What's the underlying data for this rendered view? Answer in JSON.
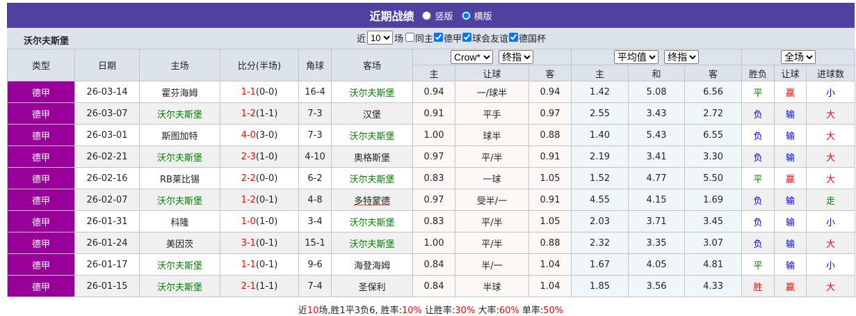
{
  "header": {
    "title": "近期战绩",
    "view_options": [
      "竖版",
      "横版"
    ],
    "selected_view": "横版"
  },
  "filter": {
    "team": "沃尔夫斯堡",
    "recent_prefix": "近",
    "recent_count": "10",
    "recent_suffix": "场",
    "checkboxes": [
      {
        "label": "同主",
        "checked": false
      },
      {
        "label": "德甲",
        "checked": true
      },
      {
        "label": "球会友谊",
        "checked": true
      },
      {
        "label": "德国杯",
        "checked": true
      }
    ]
  },
  "columns": {
    "type": "类型",
    "date": "日期",
    "home": "主场",
    "score": "比分(半场)",
    "corner": "角球",
    "away": "客场",
    "asian_company": "Crow*",
    "asian_mode": "终指",
    "avg_company": "平均值",
    "avg_mode": "终指",
    "scope": "全场",
    "sub": [
      "主",
      "让球",
      "客",
      "主",
      "和",
      "客",
      "胜负",
      "让球",
      "进球数"
    ]
  },
  "colors": {
    "title_bg": "#5040a0",
    "type_bg": "#990099",
    "team_highlight": "#008000",
    "score": "#ff0000",
    "win": "#ff0000",
    "lose": "#0000ff",
    "draw": "#008000"
  },
  "matches": [
    {
      "type": "德甲",
      "date": "26-03-14",
      "home": "霍芬海姆",
      "score": "1-1",
      "half": "(0-0)",
      "corner": "16-4",
      "away": "沃尔夫斯堡",
      "o_home": "0.94",
      "handicap": "一/球半",
      "o_away": "0.94",
      "avg_home": "1.42",
      "avg_draw": "5.08",
      "avg_away": "6.56",
      "result": "平",
      "hc_result": "赢",
      "goals": "小",
      "highlight": "away"
    },
    {
      "type": "德甲",
      "date": "26-03-07",
      "home": "沃尔夫斯堡",
      "score": "1-2",
      "half": "(1-1)",
      "corner": "7-3",
      "away": "汉堡",
      "o_home": "0.91",
      "handicap": "平手",
      "o_away": "0.97",
      "avg_home": "2.55",
      "avg_draw": "3.43",
      "avg_away": "2.72",
      "result": "负",
      "hc_result": "输",
      "goals": "大",
      "highlight": "home"
    },
    {
      "type": "德甲",
      "date": "26-03-01",
      "home": "斯图加特",
      "score": "4-0",
      "half": "(3-0)",
      "corner": "7-3",
      "away": "沃尔夫斯堡",
      "o_home": "1.00",
      "handicap": "球半",
      "o_away": "0.88",
      "avg_home": "1.40",
      "avg_draw": "5.43",
      "avg_away": "6.55",
      "result": "负",
      "hc_result": "输",
      "goals": "大",
      "highlight": "away"
    },
    {
      "type": "德甲",
      "date": "26-02-21",
      "home": "沃尔夫斯堡",
      "score": "2-3",
      "half": "(1-0)",
      "corner": "4-10",
      "away": "奥格斯堡",
      "o_home": "0.97",
      "handicap": "平/半",
      "o_away": "0.91",
      "avg_home": "2.19",
      "avg_draw": "3.41",
      "avg_away": "3.30",
      "result": "负",
      "hc_result": "输",
      "goals": "大",
      "highlight": "home"
    },
    {
      "type": "德甲",
      "date": "26-02-16",
      "home": "RB莱比锡",
      "score": "2-2",
      "half": "(0-0)",
      "corner": "6-2",
      "away": "沃尔夫斯堡",
      "o_home": "0.83",
      "handicap": "一球",
      "o_away": "1.05",
      "avg_home": "1.52",
      "avg_draw": "4.77",
      "avg_away": "5.50",
      "result": "平",
      "hc_result": "赢",
      "goals": "大",
      "highlight": "away"
    },
    {
      "type": "德甲",
      "date": "26-02-07",
      "home": "沃尔夫斯堡",
      "score": "1-2",
      "half": "(0-1)",
      "corner": "4-8",
      "away": "多特蒙德",
      "o_home": "0.97",
      "handicap": "受半/一",
      "o_away": "0.91",
      "avg_home": "4.55",
      "avg_draw": "4.15",
      "avg_away": "1.69",
      "result": "负",
      "hc_result": "输",
      "goals": "走",
      "highlight": "home"
    },
    {
      "type": "德甲",
      "date": "26-01-31",
      "home": "科隆",
      "score": "1-0",
      "half": "(1-0)",
      "corner": "3-4",
      "away": "沃尔夫斯堡",
      "o_home": "0.83",
      "handicap": "平/半",
      "o_away": "1.05",
      "avg_home": "2.03",
      "avg_draw": "3.71",
      "avg_away": "3.45",
      "result": "负",
      "hc_result": "输",
      "goals": "小",
      "highlight": "away"
    },
    {
      "type": "德甲",
      "date": "26-01-24",
      "home": "美因茨",
      "score": "3-1",
      "half": "(0-1)",
      "corner": "15-1",
      "away": "沃尔夫斯堡",
      "o_home": "1.00",
      "handicap": "平/半",
      "o_away": "0.88",
      "avg_home": "2.32",
      "avg_draw": "3.35",
      "avg_away": "3.07",
      "result": "负",
      "hc_result": "输",
      "goals": "大",
      "highlight": "away"
    },
    {
      "type": "德甲",
      "date": "26-01-17",
      "home": "沃尔夫斯堡",
      "score": "1-1",
      "half": "(0-1)",
      "corner": "9-6",
      "away": "海登海姆",
      "o_home": "0.84",
      "handicap": "半/一",
      "o_away": "1.04",
      "avg_home": "1.67",
      "avg_draw": "4.05",
      "avg_away": "4.81",
      "result": "平",
      "hc_result": "输",
      "goals": "小",
      "highlight": "home"
    },
    {
      "type": "德甲",
      "date": "26-01-15",
      "home": "沃尔夫斯堡",
      "score": "2-1",
      "half": "(1-1)",
      "corner": "7-4",
      "away": "圣保利",
      "o_home": "0.84",
      "handicap": "半球",
      "o_away": "1.04",
      "avg_home": "1.85",
      "avg_draw": "3.56",
      "avg_away": "4.33",
      "result": "胜",
      "hc_result": "赢",
      "goals": "大",
      "highlight": "home"
    }
  ],
  "summary": {
    "p1": "近",
    "n": "10",
    "p2": "场,胜1平3负6, 胜率:",
    "win_rate": "10%",
    "p3": " 让胜率:",
    "hc_rate": "30%",
    "p4": " 大率:",
    "big_rate": "60%",
    "p5": " 单率:",
    "odd_rate": "50%"
  }
}
